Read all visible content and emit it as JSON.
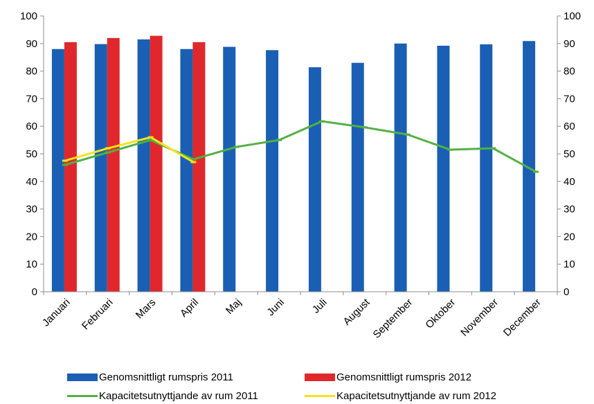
{
  "chart_data": {
    "type": "bar",
    "categories": [
      "Januari",
      "Februari",
      "Mars",
      "April",
      "Maj",
      "Juni",
      "Juli",
      "August",
      "September",
      "Oktober",
      "November",
      "December"
    ],
    "ylim": [
      0,
      100
    ],
    "y_ticks": [
      "0",
      "10",
      "20",
      "30",
      "40",
      "50",
      "60",
      "70",
      "80",
      "90",
      "100"
    ],
    "y2lim": [
      0,
      100
    ],
    "y2_ticks": [
      "0",
      "10",
      "20",
      "30",
      "40",
      "50",
      "60",
      "70",
      "80",
      "90",
      "100"
    ],
    "grid": false,
    "legend_position": "bottom",
    "bar_series": [
      {
        "name": "Genomsnittligt rumspris 2011",
        "color": "#1a5fb4",
        "values": [
          88.0,
          89.8,
          91.5,
          88.0,
          88.8,
          87.6,
          81.4,
          83.0,
          90.0,
          89.2,
          89.7,
          90.9
        ]
      },
      {
        "name": "Genomsnittligt rumspris 2012",
        "color": "#e0282c",
        "values": [
          90.5,
          92.0,
          92.8,
          90.5,
          null,
          null,
          null,
          null,
          null,
          null,
          null,
          null
        ]
      }
    ],
    "line_series": [
      {
        "name": "Kapacitetsutnyttjande av rum 2011",
        "color": "#52b043",
        "axis": "secondary",
        "values": [
          46.0,
          50.5,
          55.0,
          48.0,
          52.5,
          55.0,
          61.8,
          59.6,
          57.0,
          51.5,
          52.0,
          43.5
        ]
      },
      {
        "name": "Kapacitetsutnyttjande av rum 2012",
        "color": "#f5e31a",
        "axis": "secondary",
        "values": [
          47.5,
          52.0,
          56.0,
          47.0,
          null,
          null,
          null,
          null,
          null,
          null,
          null,
          null
        ]
      }
    ]
  }
}
